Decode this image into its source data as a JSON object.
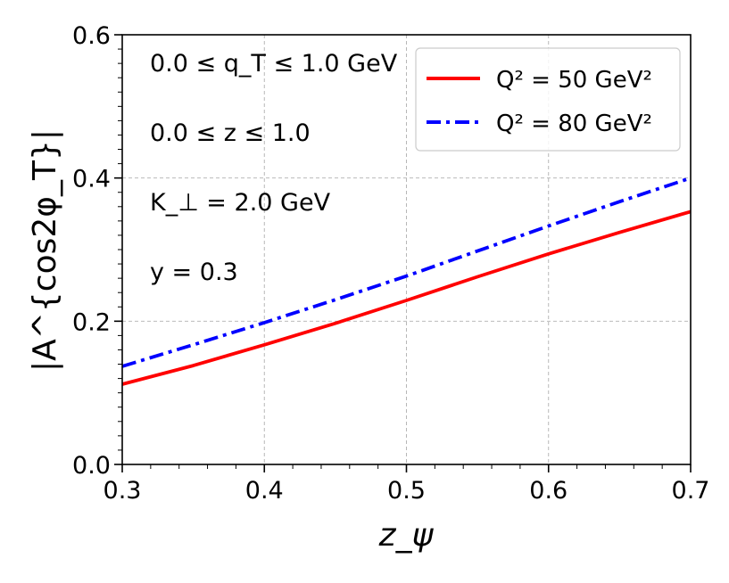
{
  "chart_data": {
    "type": "line",
    "title": "",
    "xlabel": "z_ψ",
    "ylabel": "|A^{cos2φ_T}|",
    "xlim": [
      0.3,
      0.7
    ],
    "ylim": [
      0.0,
      0.6
    ],
    "x_ticks": [
      "0.3",
      "0.4",
      "0.5",
      "0.6",
      "0.7"
    ],
    "y_ticks": [
      "0.0",
      "0.2",
      "0.4",
      "0.6"
    ],
    "grid": true,
    "legend_position": "top-right",
    "series": [
      {
        "name": "Q² = 50 GeV²",
        "color": "#ff0000",
        "style": "solid",
        "x": [
          0.3,
          0.35,
          0.4,
          0.45,
          0.5,
          0.55,
          0.6,
          0.65,
          0.7
        ],
        "y": [
          0.112,
          0.138,
          0.167,
          0.197,
          0.229,
          0.262,
          0.294,
          0.324,
          0.353
        ]
      },
      {
        "name": "Q² = 80 GeV²",
        "color": "#0000ff",
        "style": "dashdot",
        "x": [
          0.3,
          0.35,
          0.4,
          0.45,
          0.5,
          0.55,
          0.6,
          0.65,
          0.7
        ],
        "y": [
          0.137,
          0.167,
          0.198,
          0.23,
          0.263,
          0.298,
          0.333,
          0.367,
          0.4
        ]
      }
    ],
    "annotations": [
      "0.0 ≤ q_T ≤ 1.0 GeV",
      "0.0 ≤ z ≤ 1.0",
      "K_⊥ = 2.0 GeV",
      "y = 0.3"
    ]
  }
}
